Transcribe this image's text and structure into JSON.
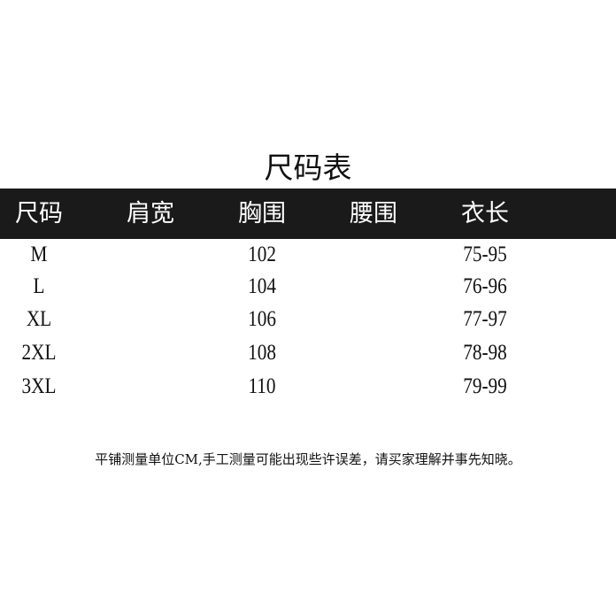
{
  "title": "尺码表",
  "headers": [
    "尺码",
    "肩宽",
    "胸围",
    "腰围",
    "衣长"
  ],
  "rows": [
    {
      "size": "M",
      "shoulder": "",
      "chest": "102",
      "waist": "",
      "length": "75-95"
    },
    {
      "size": "L",
      "shoulder": "",
      "chest": "104",
      "waist": "",
      "length": "76-96"
    },
    {
      "size": "XL",
      "shoulder": "",
      "chest": "106",
      "waist": "",
      "length": "77-97"
    },
    {
      "size": "2XL",
      "shoulder": "",
      "chest": "108",
      "waist": "",
      "length": "78-98"
    },
    {
      "size": "3XL",
      "shoulder": "",
      "chest": "110",
      "waist": "",
      "length": "79-99"
    }
  ],
  "note": "平铺测量单位CM,手工测量可能出现些许误差，请买家理解并事先知晓。",
  "colors": {
    "header_band": "#1a1a1a",
    "header_text": "#ffffff"
  }
}
